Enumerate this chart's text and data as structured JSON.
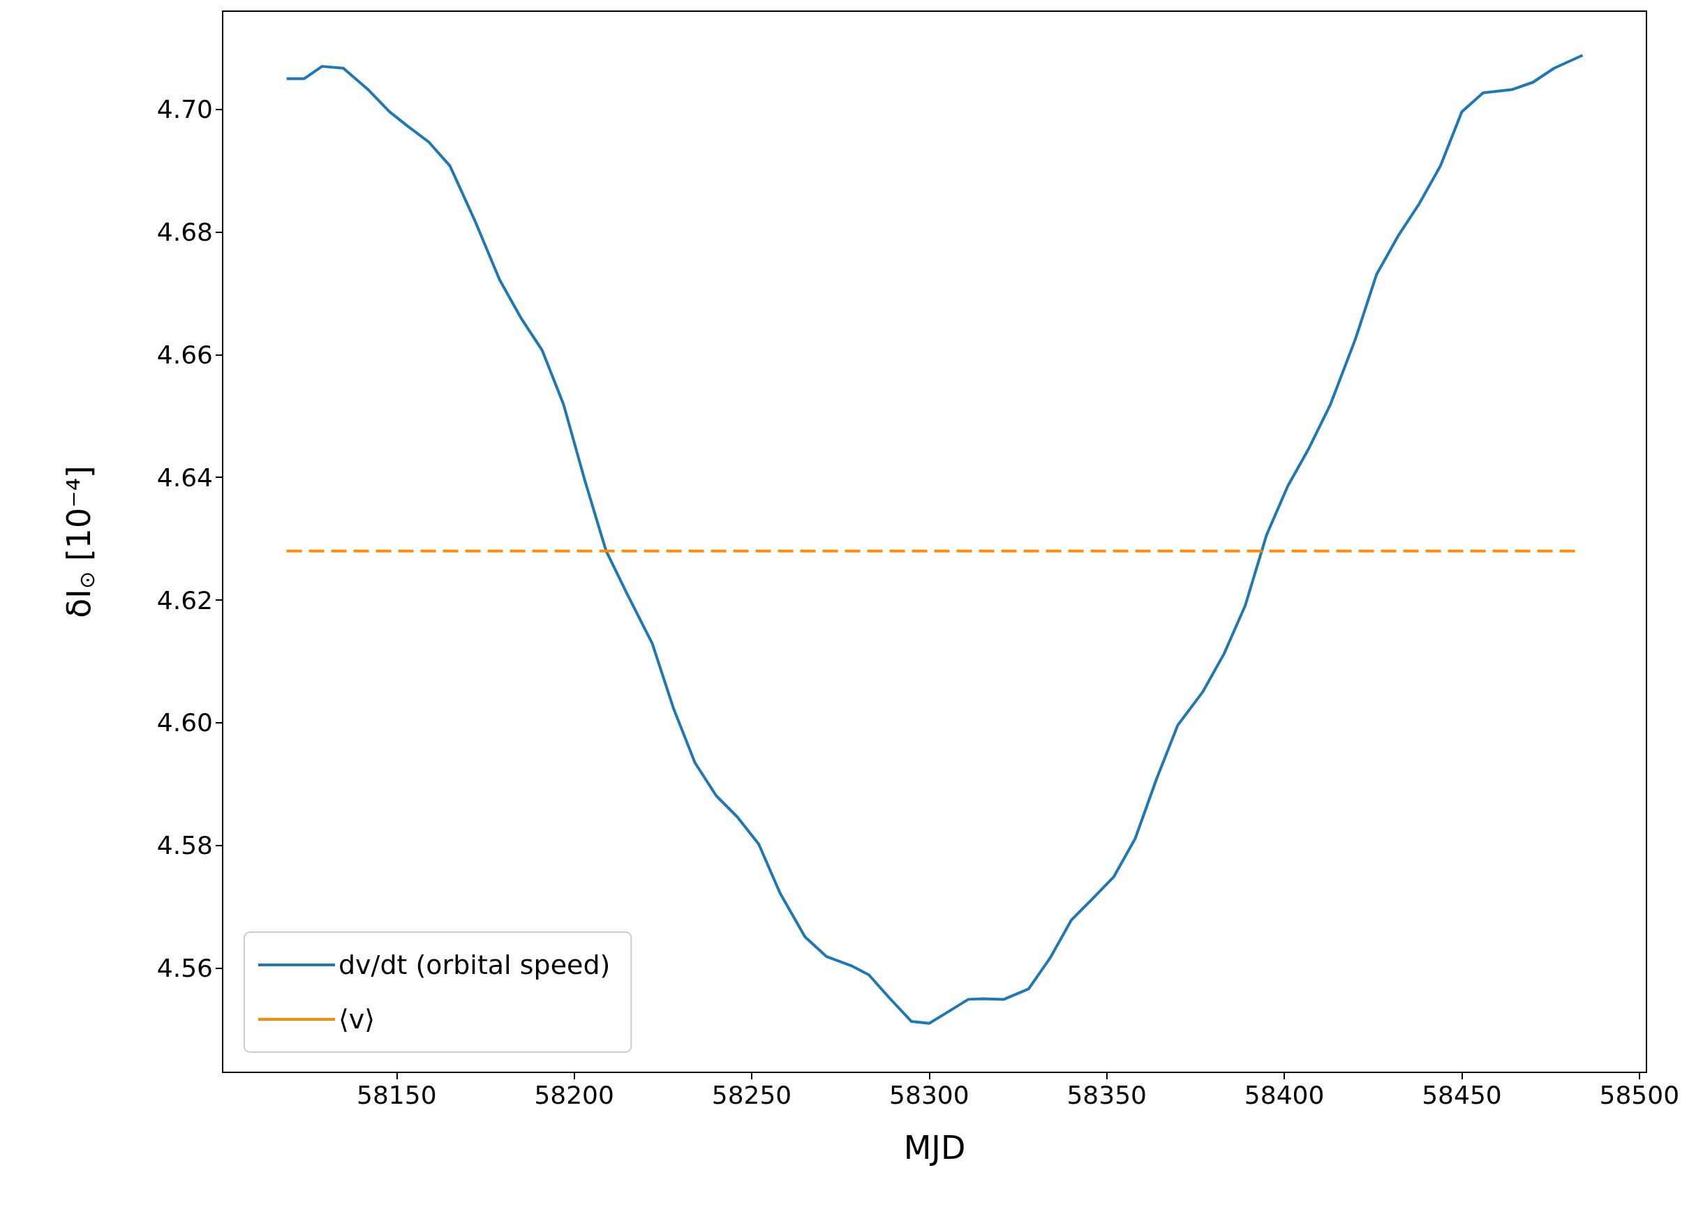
{
  "chart_data": {
    "type": "line",
    "xlabel": "MJD",
    "ylabel": "δI$_{⊙}$ [10⁻⁴]",
    "xlim": [
      58101,
      58502
    ],
    "xticks": [
      58150,
      58200,
      58250,
      58300,
      58350,
      58400,
      58450,
      58500
    ],
    "ylim": [
      4.543,
      4.716
    ],
    "yticks": [
      {
        "value": 4.56,
        "label": "4.56"
      },
      {
        "value": 4.58,
        "label": "4.58"
      },
      {
        "value": 4.6,
        "label": "4.60"
      },
      {
        "value": 4.62,
        "label": "4.62"
      },
      {
        "value": 4.64,
        "label": "4.64"
      },
      {
        "value": 4.66,
        "label": "4.66"
      },
      {
        "value": 4.68,
        "label": "4.68"
      },
      {
        "value": 4.7,
        "label": "4.70"
      }
    ],
    "grid": false,
    "legend": "bottom left",
    "marker": "none",
    "series": [
      {
        "name": "dv/dt (orbital speed)",
        "color": "#1f77b4",
        "line_style": "solid",
        "x": [
          58119,
          58124,
          58129,
          58135,
          58142,
          58148,
          58153,
          58159,
          58165,
          58172,
          58179,
          58185,
          58191,
          58197,
          58203,
          58209,
          58215,
          58222,
          58228,
          58234,
          58240,
          58246,
          58252,
          58258,
          58265,
          58271,
          58278,
          58283,
          58289,
          58295,
          58300,
          58304,
          58311,
          58315,
          58321,
          58328,
          58334,
          58340,
          58346,
          58352,
          58358,
          58364,
          58370,
          58377,
          58383,
          58389,
          58395,
          58401,
          58407,
          58413,
          58420,
          58426,
          58432,
          58438,
          58444,
          58450,
          58456,
          58464,
          58470,
          58476,
          58484
        ],
        "values": [
          4.705,
          4.705,
          4.707,
          4.7067,
          4.7032,
          4.6996,
          4.6973,
          4.6947,
          4.6908,
          4.6819,
          4.6722,
          4.666,
          4.6607,
          4.6519,
          4.6395,
          4.628,
          4.6209,
          4.6129,
          4.6023,
          4.5935,
          4.5881,
          4.5846,
          4.5802,
          4.5722,
          4.5651,
          4.5619,
          4.5604,
          4.5589,
          4.555,
          4.5513,
          4.551,
          4.5524,
          4.5549,
          4.555,
          4.5549,
          4.5566,
          4.5616,
          4.5678,
          4.5713,
          4.5749,
          4.5811,
          4.5908,
          4.5996,
          4.605,
          4.6112,
          4.6191,
          4.6306,
          4.6386,
          4.6448,
          4.6519,
          4.6625,
          4.6731,
          4.6793,
          4.6846,
          4.6908,
          4.6996,
          4.7027,
          4.7032,
          4.7044,
          4.7067,
          4.7088
        ]
      },
      {
        "name": "⟨v⟩",
        "color": "#ff8c00",
        "line_style": "dashed",
        "x": [
          58119,
          58482
        ],
        "values": [
          4.628,
          4.628
        ]
      }
    ]
  }
}
